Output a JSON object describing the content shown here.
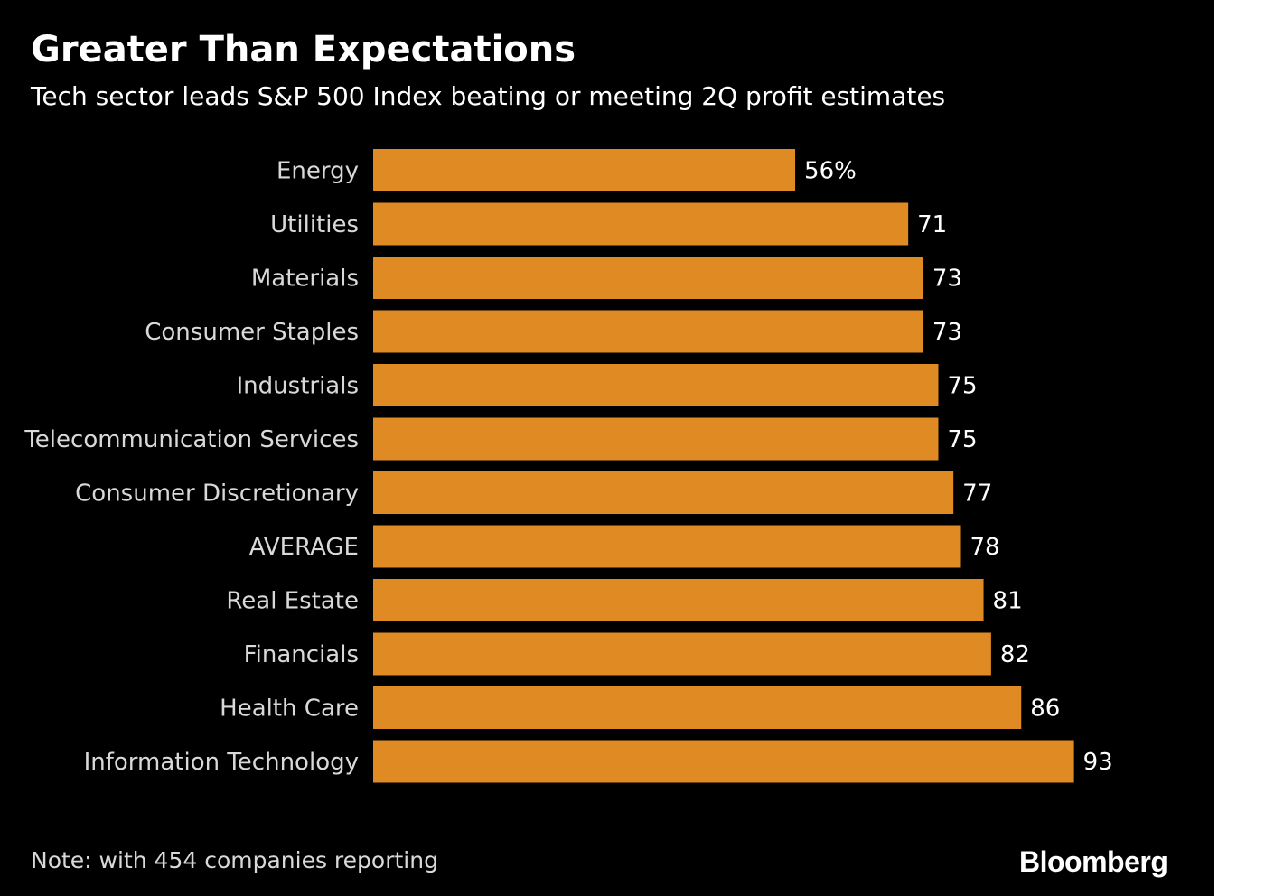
{
  "header": {
    "title": "Greater Than Expectations",
    "subtitle": "Tech sector leads S&P 500 Index beating or meeting 2Q profit estimates"
  },
  "footer": {
    "note": "Note: with 454 companies reporting",
    "brand": "Bloomberg"
  },
  "colors": {
    "background": "#000000",
    "bar": "#e08a24",
    "text": "#ffffff",
    "muted_text": "#d9d9d9"
  },
  "chart_data": {
    "type": "bar",
    "orientation": "horizontal",
    "title": "Greater Than Expectations",
    "subtitle": "Tech sector leads S&P 500 Index beating or meeting 2Q profit estimates",
    "categories": [
      "Energy",
      "Utilities",
      "Materials",
      "Consumer Staples",
      "Industrials",
      "Telecommunication Services",
      "Consumer Discretionary",
      "AVERAGE",
      "Real Estate",
      "Financials",
      "Health Care",
      "Information Technology"
    ],
    "values": [
      56,
      71,
      73,
      73,
      75,
      75,
      77,
      78,
      81,
      82,
      86,
      93
    ],
    "value_labels": [
      "56%",
      "71",
      "73",
      "73",
      "75",
      "75",
      "77",
      "78",
      "81",
      "82",
      "86",
      "93"
    ],
    "unit": "%",
    "xlim": [
      0,
      100
    ],
    "grid": false,
    "legend": "none"
  }
}
